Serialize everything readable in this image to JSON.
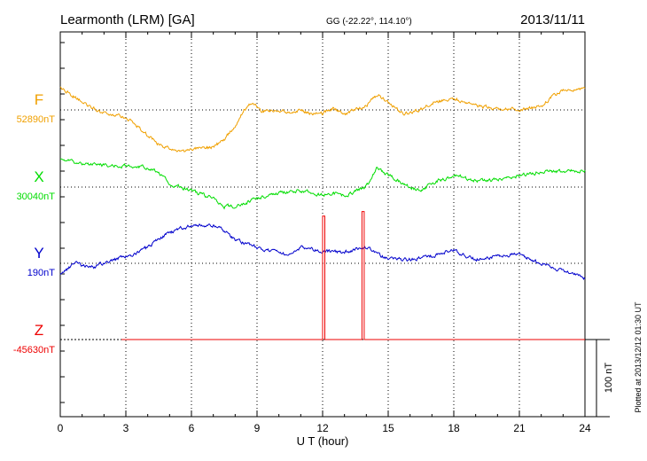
{
  "header": {
    "station": "Learmonth (LRM)  [GA]",
    "coords": "GG (-22.22°, 114.10°)",
    "date": "2013/11/11"
  },
  "plotted_note": "Plotted at 2013/12/12 01:30 UT",
  "scale_label": "100 nT",
  "chart_data": {
    "type": "line",
    "title": "Learmonth (LRM)  [GA]",
    "xlabel": "U T (hour)",
    "ylabel": "",
    "xlim": [
      0,
      24
    ],
    "xticks": [
      0,
      3,
      6,
      9,
      12,
      15,
      18,
      21,
      24
    ],
    "nt_per_scale_bar": 100,
    "colors": {
      "F": "#f0a000",
      "X": "#00dd00",
      "Y": "#0000cc",
      "Z": "#ee0000"
    },
    "series": [
      {
        "name": "F",
        "baseline_label": "52890nT",
        "t": [
          0,
          1,
          2,
          3,
          3.5,
          4.5,
          5.5,
          6,
          7,
          7.5,
          8,
          8.4,
          8.8,
          9.2,
          10,
          10.5,
          11,
          11.5,
          12,
          12.5,
          13,
          13.5,
          14,
          14.5,
          15,
          15.7,
          16.3,
          17,
          18,
          19,
          20,
          21,
          22,
          22.5,
          23,
          24
        ],
        "v": [
          30,
          10,
          -5,
          -10,
          -20,
          -45,
          -55,
          -52,
          -48,
          -38,
          -20,
          0,
          10,
          -2,
          0,
          -3,
          0,
          -5,
          -5,
          3,
          -5,
          0,
          5,
          20,
          10,
          -5,
          -2,
          10,
          15,
          5,
          2,
          0,
          5,
          18,
          25,
          28
        ]
      },
      {
        "name": "X",
        "baseline_label": "30040nT",
        "t": [
          0,
          1,
          2,
          3,
          4,
          4.5,
          5,
          6,
          7,
          7.5,
          8,
          8.5,
          9,
          10,
          11,
          12,
          12.5,
          13,
          13.5,
          14,
          14.5,
          15,
          16,
          16.5,
          17,
          18,
          19,
          20,
          21,
          22,
          23,
          24
        ],
        "v": [
          35,
          30,
          28,
          28,
          25,
          18,
          5,
          -5,
          -15,
          -25,
          -25,
          -20,
          -15,
          -8,
          -5,
          -10,
          -8,
          -12,
          -5,
          0,
          25,
          15,
          0,
          -5,
          5,
          15,
          8,
          10,
          15,
          20,
          20,
          22
        ]
      },
      {
        "name": "Y",
        "baseline_label": "190nT",
        "t": [
          0,
          0.7,
          1.5,
          2.5,
          3.2,
          4,
          4.5,
          5,
          5.5,
          6,
          7,
          7.5,
          8,
          9,
          9.7,
          10.5,
          11,
          12,
          13,
          14,
          15,
          16,
          17,
          18,
          18.5,
          19,
          20,
          21,
          22,
          23,
          24
        ],
        "v": [
          -15,
          0,
          -5,
          5,
          10,
          20,
          32,
          40,
          45,
          48,
          50,
          42,
          30,
          20,
          15,
          10,
          20,
          15,
          15,
          20,
          5,
          5,
          10,
          18,
          10,
          5,
          10,
          12,
          0,
          -10,
          -20
        ]
      },
      {
        "name": "Z",
        "baseline_label": "-45630nT",
        "t": [
          2.8,
          12.0,
          12.0,
          12.1,
          12.1,
          13.8,
          13.8,
          13.9,
          13.9,
          24
        ],
        "v": [
          0,
          0,
          160,
          160,
          0,
          0,
          166,
          166,
          0,
          0
        ]
      }
    ]
  }
}
